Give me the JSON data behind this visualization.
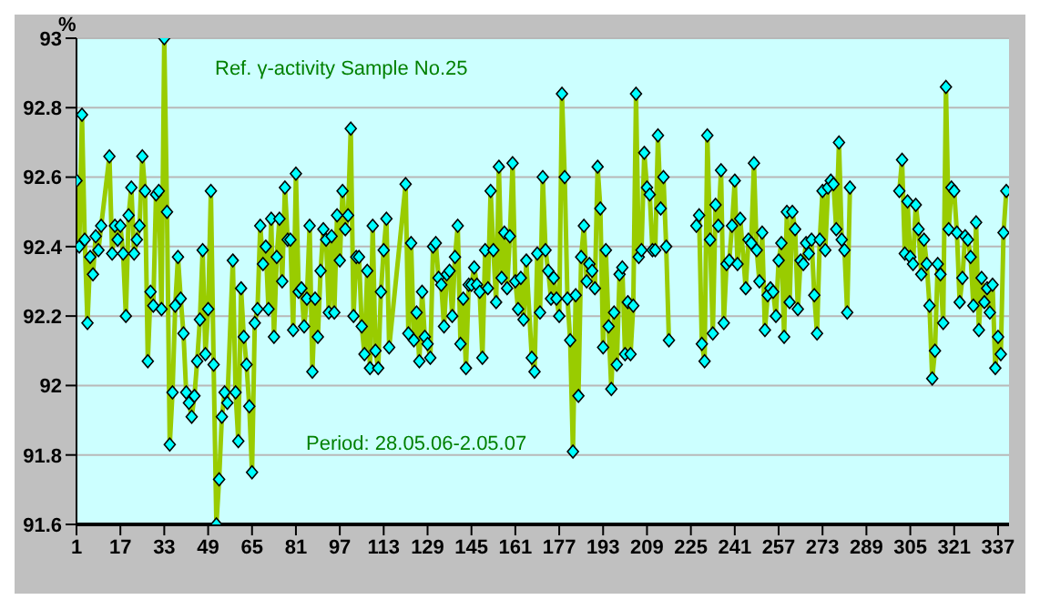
{
  "chart_data": {
    "type": "line",
    "title": "Ref. γ-activity Sample No.25",
    "ylabel": "%",
    "annotations": [
      "Period: 28.05.06-2.05.07"
    ],
    "x": [
      1,
      2,
      3,
      4,
      5,
      6,
      7,
      8,
      9,
      10,
      13,
      14,
      15,
      16,
      17,
      18,
      19,
      20,
      21,
      22,
      23,
      24,
      25,
      26,
      27,
      28,
      29,
      30,
      31,
      32,
      33,
      34,
      35,
      36,
      37,
      38,
      39,
      40,
      41,
      42,
      43,
      44,
      45,
      46,
      47,
      48,
      49,
      50,
      51,
      52,
      53,
      54,
      55,
      56,
      58,
      59,
      60,
      61,
      62,
      63,
      64,
      65,
      66,
      67,
      68,
      69,
      70,
      71,
      72,
      73,
      74,
      75,
      76,
      77,
      78,
      79,
      80,
      81,
      82,
      83,
      84,
      85,
      86,
      87,
      88,
      89,
      90,
      91,
      92,
      93,
      94,
      95,
      96,
      97,
      98,
      99,
      100,
      101,
      102,
      103,
      104,
      105,
      106,
      107,
      108,
      109,
      110,
      111,
      112,
      113,
      114,
      115,
      121,
      122,
      123,
      124,
      125,
      126,
      127,
      128,
      129,
      130,
      131,
      132,
      133,
      134,
      135,
      136,
      137,
      138,
      139,
      140,
      141,
      142,
      143,
      144,
      145,
      146,
      147,
      148,
      149,
      150,
      151,
      152,
      153,
      154,
      155,
      156,
      157,
      158,
      159,
      160,
      161,
      162,
      163,
      164,
      165,
      167,
      168,
      169,
      170,
      171,
      172,
      173,
      174,
      175,
      176,
      177,
      178,
      179,
      180,
      181,
      182,
      183,
      184,
      185,
      186,
      187,
      188,
      189,
      190,
      191,
      192,
      193,
      194,
      195,
      196,
      197,
      198,
      199,
      200,
      201,
      202,
      203,
      204,
      205,
      206,
      207,
      208,
      209,
      210,
      211,
      212,
      213,
      214,
      215,
      216,
      217,
      222,
      227,
      228,
      229,
      230,
      231,
      232,
      233,
      234,
      235,
      236,
      237,
      238,
      239,
      240,
      241,
      242,
      243,
      245,
      246,
      247,
      248,
      249,
      250,
      251,
      252,
      253,
      254,
      255,
      256,
      257,
      258,
      259,
      260,
      261,
      262,
      263,
      264,
      265,
      266,
      267,
      268,
      269,
      270,
      271,
      272,
      273,
      274,
      275,
      276,
      277,
      278,
      279,
      280,
      281,
      282,
      283,
      292,
      301,
      302,
      303,
      304,
      305,
      306,
      307,
      308,
      309,
      310,
      311,
      312,
      313,
      314,
      315,
      316,
      317,
      318,
      319,
      320,
      321,
      322,
      323,
      324,
      325,
      326,
      327,
      328,
      329,
      330,
      331,
      332,
      333,
      334,
      335,
      336,
      337,
      338,
      339,
      340
    ],
    "values": [
      92.59,
      92.4,
      92.78,
      92.42,
      92.18,
      92.37,
      92.32,
      92.43,
      92.39,
      92.46,
      92.66,
      92.38,
      92.46,
      92.42,
      92.46,
      92.38,
      92.2,
      92.49,
      92.57,
      92.38,
      92.42,
      92.46,
      92.66,
      92.56,
      92.07,
      92.27,
      92.23,
      92.55,
      92.56,
      92.22,
      93.0,
      92.5,
      91.83,
      91.98,
      92.23,
      92.37,
      92.25,
      92.15,
      91.98,
      91.95,
      91.91,
      91.97,
      92.07,
      92.19,
      92.39,
      92.09,
      92.22,
      92.56,
      92.06,
      91.6,
      91.73,
      91.91,
      91.98,
      91.95,
      92.36,
      91.98,
      91.84,
      92.28,
      92.14,
      92.06,
      91.94,
      91.75,
      92.18,
      92.22,
      92.46,
      92.35,
      92.4,
      92.22,
      92.48,
      92.14,
      92.37,
      92.48,
      92.3,
      92.57,
      92.42,
      92.42,
      92.16,
      92.61,
      92.27,
      92.28,
      92.17,
      92.25,
      92.46,
      92.04,
      92.25,
      92.14,
      92.33,
      92.45,
      92.42,
      92.21,
      92.43,
      92.21,
      92.49,
      92.36,
      92.56,
      92.45,
      92.49,
      92.74,
      92.2,
      92.37,
      92.37,
      92.17,
      92.09,
      92.33,
      92.05,
      92.46,
      92.1,
      92.05,
      92.27,
      92.39,
      92.48,
      92.11,
      92.58,
      92.15,
      92.41,
      92.13,
      92.21,
      92.07,
      92.27,
      92.14,
      92.12,
      92.08,
      92.4,
      92.41,
      92.31,
      92.29,
      92.17,
      92.32,
      92.33,
      92.2,
      92.37,
      92.46,
      92.12,
      92.25,
      92.05,
      92.29,
      92.29,
      92.34,
      92.29,
      92.27,
      92.08,
      92.39,
      92.28,
      92.56,
      92.39,
      92.24,
      92.63,
      92.31,
      92.44,
      92.28,
      92.43,
      92.64,
      92.3,
      92.22,
      92.31,
      92.19,
      92.36,
      92.08,
      92.04,
      92.38,
      92.21,
      92.6,
      92.39,
      92.33,
      92.25,
      92.31,
      92.25,
      92.2,
      92.84,
      92.6,
      92.25,
      92.13,
      91.81,
      92.26,
      91.97,
      92.37,
      92.46,
      92.3,
      92.35,
      92.33,
      92.28,
      92.63,
      92.51,
      92.11,
      92.39,
      92.17,
      91.99,
      92.21,
      92.06,
      92.32,
      92.34,
      92.09,
      92.24,
      92.09,
      92.23,
      92.84,
      92.37,
      92.39,
      92.67,
      92.57,
      92.55,
      92.39,
      92.39,
      92.72,
      92.51,
      92.6,
      92.4,
      92.13,
      null,
      92.46,
      92.49,
      92.12,
      92.07,
      92.72,
      92.42,
      92.15,
      92.52,
      92.46,
      92.62,
      92.18,
      92.35,
      92.36,
      92.46,
      92.59,
      92.35,
      92.48,
      92.28,
      92.42,
      92.41,
      92.64,
      92.39,
      92.3,
      92.44,
      92.16,
      92.26,
      92.28,
      92.27,
      92.2,
      92.36,
      92.41,
      92.14,
      92.5,
      92.24,
      92.5,
      92.45,
      92.22,
      92.36,
      92.35,
      92.41,
      92.38,
      92.42,
      92.26,
      92.15,
      92.42,
      92.56,
      92.39,
      92.57,
      92.59,
      92.58,
      92.45,
      92.7,
      92.42,
      92.39,
      92.21,
      92.57,
      null,
      92.56,
      92.65,
      92.38,
      92.53,
      92.37,
      92.35,
      92.52,
      92.45,
      92.32,
      92.42,
      92.35,
      92.23,
      92.02,
      92.1,
      92.35,
      92.32,
      92.18,
      92.86,
      92.45,
      92.57,
      92.56,
      92.44,
      92.24,
      92.31,
      92.43,
      92.42,
      92.37,
      92.23,
      92.47,
      92.16,
      92.31,
      92.24,
      92.28,
      92.21,
      92.29,
      92.05,
      92.14,
      92.09,
      92.44,
      92.56
    ],
    "color": "#99cc00",
    "marker": "diamond",
    "xlim": [
      1,
      341
    ],
    "xticks": [
      1,
      17,
      33,
      49,
      65,
      81,
      97,
      113,
      129,
      145,
      161,
      177,
      193,
      209,
      225,
      241,
      257,
      273,
      289,
      305,
      321,
      337
    ],
    "ylim": [
      91.6,
      93
    ],
    "yticks": [
      91.6,
      91.8,
      92,
      92.2,
      92.4,
      92.6,
      92.8,
      93
    ],
    "grid": "y"
  }
}
